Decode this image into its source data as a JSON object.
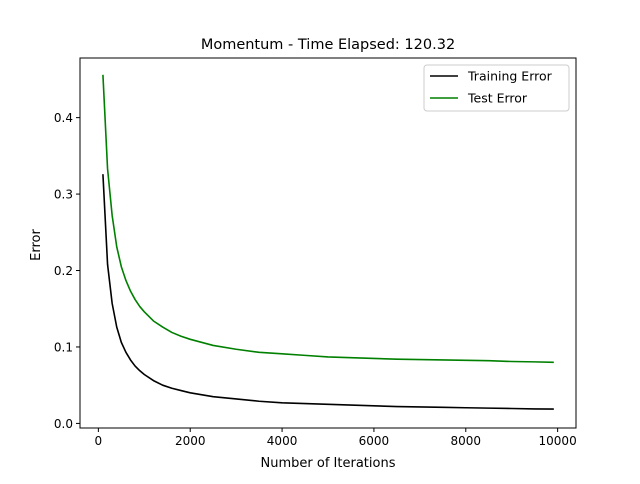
{
  "chart_data": {
    "type": "line",
    "title": "Momentum - Time Elapsed: 120.32",
    "xlabel": "Number of Iterations",
    "ylabel": "Error",
    "xlim": [
      -400,
      10400
    ],
    "ylim": [
      -0.006,
      0.478
    ],
    "x_ticks": [
      0,
      2000,
      4000,
      6000,
      8000,
      10000
    ],
    "x_tick_labels": [
      "0",
      "2000",
      "4000",
      "6000",
      "8000",
      "10000"
    ],
    "y_ticks": [
      0.0,
      0.1,
      0.2,
      0.3,
      0.4
    ],
    "y_tick_labels": [
      "0.0",
      "0.1",
      "0.2",
      "0.3",
      "0.4"
    ],
    "grid": false,
    "legend_position": "top-right",
    "x": [
      100,
      200,
      300,
      400,
      500,
      600,
      700,
      800,
      900,
      1000,
      1200,
      1400,
      1600,
      1800,
      2000,
      2500,
      3000,
      3500,
      4000,
      4500,
      5000,
      5500,
      6000,
      6500,
      7000,
      7500,
      8000,
      8500,
      9000,
      9500,
      9900
    ],
    "series": [
      {
        "name": "Training Error",
        "color": "#000000",
        "values": [
          0.325,
          0.208,
          0.157,
          0.126,
          0.106,
          0.093,
          0.083,
          0.075,
          0.069,
          0.064,
          0.056,
          0.05,
          0.046,
          0.043,
          0.04,
          0.035,
          0.032,
          0.029,
          0.027,
          0.026,
          0.025,
          0.024,
          0.023,
          0.022,
          0.0215,
          0.021,
          0.0205,
          0.02,
          0.0195,
          0.019,
          0.0188
        ]
      },
      {
        "name": "Test Error",
        "color": "#008000",
        "values": [
          0.455,
          0.333,
          0.272,
          0.231,
          0.205,
          0.187,
          0.173,
          0.162,
          0.153,
          0.146,
          0.134,
          0.126,
          0.119,
          0.114,
          0.11,
          0.102,
          0.097,
          0.093,
          0.091,
          0.089,
          0.087,
          0.086,
          0.085,
          0.084,
          0.0835,
          0.083,
          0.0825,
          0.082,
          0.081,
          0.0805,
          0.08
        ]
      }
    ]
  }
}
